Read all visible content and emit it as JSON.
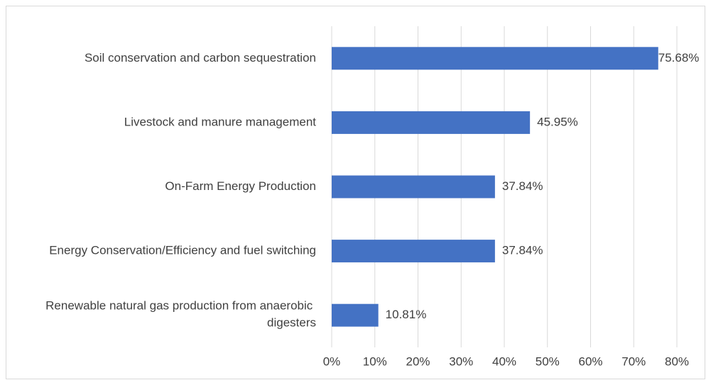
{
  "chart_data": {
    "type": "bar",
    "orientation": "horizontal",
    "categories": [
      "Soil conservation and carbon sequestration",
      "Livestock and manure management",
      "On-Farm Energy Production",
      "Energy Conservation/Efficiency and fuel switching",
      "Renewable natural gas production from anaerobic digesters"
    ],
    "values": [
      75.68,
      45.95,
      37.84,
      37.84,
      10.81
    ],
    "value_labels": [
      "75.68%",
      "45.95%",
      "37.84%",
      "37.84%",
      "10.81%"
    ],
    "color": "#4472c4",
    "xlim": [
      0,
      80
    ],
    "xticks": [
      {
        "value": 0,
        "label": "0%"
      },
      {
        "value": 10,
        "label": "10%"
      },
      {
        "value": 20,
        "label": "20%"
      },
      {
        "value": 30,
        "label": "30%"
      },
      {
        "value": 40,
        "label": "40%"
      },
      {
        "value": 50,
        "label": "50%"
      },
      {
        "value": 60,
        "label": "60%"
      },
      {
        "value": 70,
        "label": "70%"
      },
      {
        "value": 80,
        "label": "80%"
      }
    ],
    "grid": true
  }
}
